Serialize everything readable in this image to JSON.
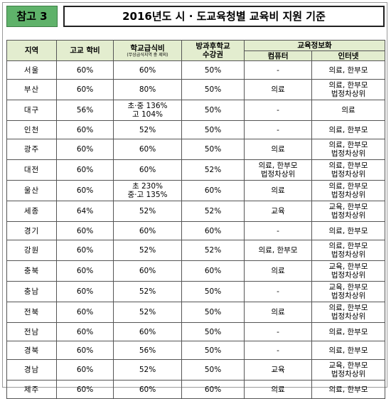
{
  "header": {
    "tag": "참고 3",
    "title": "2016년도 시 · 도교육청별 교육비 지원 기준"
  },
  "table": {
    "headers": {
      "region": "지역",
      "tuition": "고교 학비",
      "meal": "학교급식비",
      "meal_note": "(무상급식지역 중 제외)",
      "afterschool_line1": "방과후학교",
      "afterschool_line2": "수강권",
      "edu_info": "교육정보화",
      "computer": "컴퓨터",
      "internet": "인터넷"
    },
    "rows": [
      {
        "region": "서울",
        "tuition": "60%",
        "meal": [
          "60%"
        ],
        "afterschool": "50%",
        "computer": [
          "-"
        ],
        "internet": [
          "의료, 한부모"
        ]
      },
      {
        "region": "부산",
        "tuition": "60%",
        "meal": [
          "80%"
        ],
        "afterschool": "50%",
        "computer": [
          "의료"
        ],
        "internet": [
          "의료, 한부모",
          "법정차상위"
        ]
      },
      {
        "region": "대구",
        "tuition": "56%",
        "meal": [
          "초·중 136%",
          "고 104%"
        ],
        "afterschool": "50%",
        "computer": [
          "-"
        ],
        "internet": [
          "의료"
        ]
      },
      {
        "region": "인천",
        "tuition": "60%",
        "meal": [
          "52%"
        ],
        "afterschool": "50%",
        "computer": [
          "-"
        ],
        "internet": [
          "의료, 한부모"
        ]
      },
      {
        "region": "광주",
        "tuition": "60%",
        "meal": [
          "60%"
        ],
        "afterschool": "50%",
        "computer": [
          "의료"
        ],
        "internet": [
          "의료, 한부모",
          "법정차상위"
        ]
      },
      {
        "region": "대전",
        "tuition": "60%",
        "meal": [
          "60%"
        ],
        "afterschool": "52%",
        "computer": [
          "의료, 한부모",
          "법정차상위"
        ],
        "internet": [
          "의료, 한부모",
          "법정차상위"
        ]
      },
      {
        "region": "울산",
        "tuition": "60%",
        "meal": [
          "초 230%",
          "중·고 135%"
        ],
        "afterschool": "60%",
        "computer": [
          "의료"
        ],
        "internet": [
          "의료, 한부모",
          "법정차상위"
        ]
      },
      {
        "region": "세종",
        "tuition": "64%",
        "meal": [
          "52%"
        ],
        "afterschool": "52%",
        "computer": [
          "교육"
        ],
        "internet": [
          "교육, 한부모",
          "법정차상위"
        ]
      },
      {
        "region": "경기",
        "tuition": "60%",
        "meal": [
          "60%"
        ],
        "afterschool": "60%",
        "computer": [
          "-"
        ],
        "internet": [
          "의료, 한부모"
        ]
      },
      {
        "region": "강원",
        "tuition": "60%",
        "meal": [
          "52%"
        ],
        "afterschool": "52%",
        "computer": [
          "의료, 한부모"
        ],
        "internet": [
          "의료, 한부모",
          "법정차상위"
        ]
      },
      {
        "region": "충북",
        "tuition": "60%",
        "meal": [
          "60%"
        ],
        "afterschool": "60%",
        "computer": [
          "의료"
        ],
        "internet": [
          "교육, 한부모",
          "법정차상위"
        ]
      },
      {
        "region": "충남",
        "tuition": "60%",
        "meal": [
          "52%"
        ],
        "afterschool": "50%",
        "computer": [
          "-"
        ],
        "internet": [
          "교육, 한부모",
          "법정차상위"
        ]
      },
      {
        "region": "전북",
        "tuition": "60%",
        "meal": [
          "52%"
        ],
        "afterschool": "50%",
        "computer": [
          "의료"
        ],
        "internet": [
          "의료, 한부모",
          "법정차상위"
        ]
      },
      {
        "region": "전남",
        "tuition": "60%",
        "meal": [
          "60%"
        ],
        "afterschool": "50%",
        "computer": [
          "-"
        ],
        "internet": [
          "의료, 한부모"
        ]
      },
      {
        "region": "경북",
        "tuition": "60%",
        "meal": [
          "56%"
        ],
        "afterschool": "50%",
        "computer": [
          "-"
        ],
        "internet": [
          "의료, 한부모"
        ]
      },
      {
        "region": "경남",
        "tuition": "60%",
        "meal": [
          "52%"
        ],
        "afterschool": "50%",
        "computer": [
          "교육"
        ],
        "internet": [
          "교육, 한부모",
          "법정차상위"
        ]
      },
      {
        "region": "제주",
        "tuition": "60%",
        "meal": [
          "60%"
        ],
        "afterschool": "60%",
        "computer": [
          "의료"
        ],
        "internet": [
          "의료, 한부모"
        ]
      }
    ]
  }
}
